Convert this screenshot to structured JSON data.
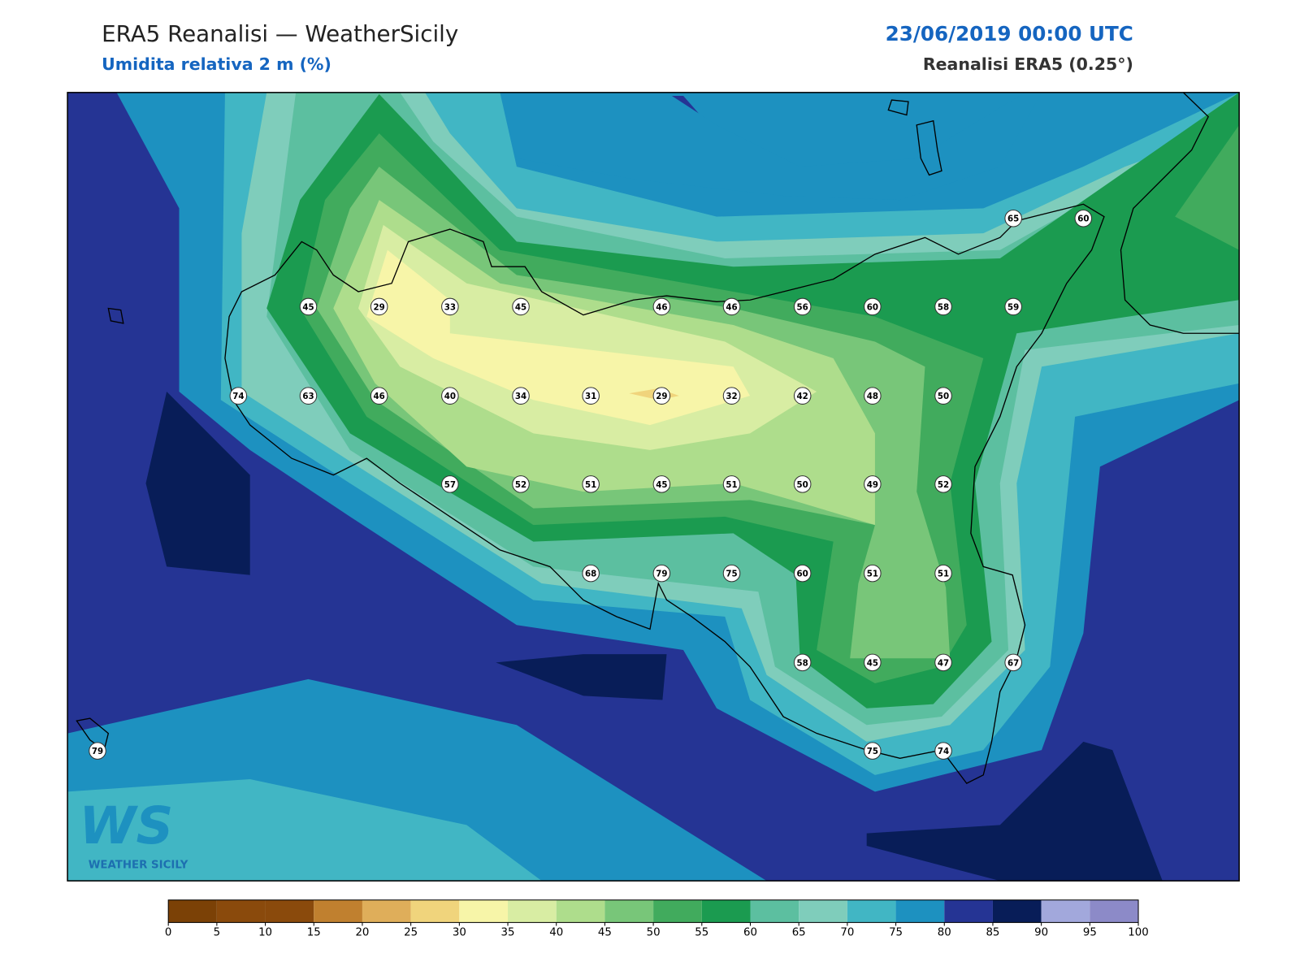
{
  "header": {
    "title": "ERA5 Reanalisi — WeatherSicily",
    "subtitle": "Umidita relativa 2 m (%)",
    "date": "23/06/2019 00:00 UTC",
    "source": "Reanalisi ERA5 (0.25°)"
  },
  "stations": [
    45,
    29,
    33,
    45,
    46,
    46,
    56,
    60,
    58,
    59,
    65,
    60,
    74,
    63,
    46,
    40,
    34,
    31,
    29,
    32,
    42,
    48,
    50,
    57,
    52,
    51,
    45,
    51,
    50,
    49,
    52,
    68,
    79,
    75,
    60,
    51,
    51,
    58,
    45,
    47,
    67,
    79,
    75,
    74
  ],
  "colorbar": {
    "ticks": [
      0,
      5,
      10,
      15,
      20,
      25,
      30,
      35,
      40,
      45,
      50,
      55,
      60,
      65,
      70,
      75,
      80,
      85,
      90,
      95,
      100
    ],
    "colors": [
      "#7b4106",
      "#8a4a0c",
      "#8a4a0c",
      "#c0802f",
      "#dfae5a",
      "#f0d47c",
      "#f7f5a8",
      "#d8eda3",
      "#aedd8c",
      "#78c679",
      "#41ab5d",
      "#1b9b50",
      "#5cbfa0",
      "#7fcdbb",
      "#41b6c4",
      "#1d91c0",
      "#253494",
      "#081d58",
      "#a2a8dc",
      "#8c8ac8"
    ]
  },
  "logo": {
    "mark": "WS",
    "text": "WEATHER SICILY"
  }
}
